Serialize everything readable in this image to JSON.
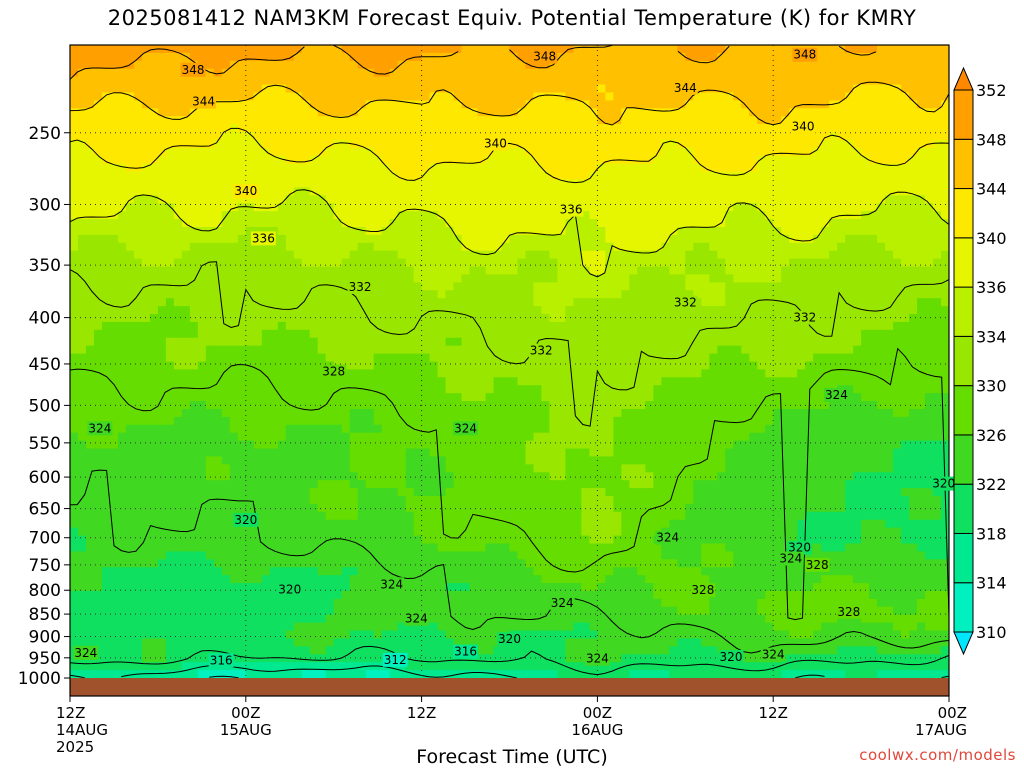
{
  "chart_data": {
    "type": "heatmap",
    "title": "2025081412 NAM3KM Forecast Equiv. Potential Temperature (K) for KMRY",
    "xlabel": "Forecast Time (UTC)",
    "ylabel": "",
    "y_scale": "log",
    "y_reversed": true,
    "ylim": [
      1000,
      200
    ],
    "y_ticks": [
      250,
      300,
      350,
      400,
      450,
      500,
      550,
      600,
      650,
      700,
      750,
      800,
      850,
      900,
      950,
      1000
    ],
    "x_ticks": [
      {
        "line1": "12Z",
        "line2": "14AUG",
        "line3": "2025"
      },
      {
        "line1": "00Z",
        "line2": "15AUG",
        "line3": ""
      },
      {
        "line1": "12Z",
        "line2": "",
        "line3": ""
      },
      {
        "line1": "00Z",
        "line2": "16AUG",
        "line3": ""
      },
      {
        "line1": "12Z",
        "line2": "",
        "line3": ""
      },
      {
        "line1": "00Z",
        "line2": "17AUG",
        "line3": ""
      }
    ],
    "colorbar": {
      "levels": [
        310,
        314,
        318,
        322,
        326,
        330,
        334,
        336,
        340,
        344,
        348,
        352
      ],
      "colors": [
        "#00e6ff",
        "#00f0c0",
        "#00e890",
        "#10e060",
        "#40d820",
        "#66dd00",
        "#99e600",
        "#b8f000",
        "#e6f500",
        "#ffe800",
        "#ffc000",
        "#ffa000",
        "#ff8800"
      ],
      "extend": "both"
    },
    "profile_levels_hPa": [
      1000,
      950,
      900,
      850,
      800,
      750,
      700,
      650,
      600,
      550,
      500,
      450,
      400,
      350,
      300,
      250,
      200
    ],
    "profile_times": [
      "12Z 14AUG",
      "00Z 15AUG",
      "12Z",
      "00Z 16AUG",
      "12Z",
      "00Z 17AUG"
    ],
    "profiles_K": [
      [
        316,
        322,
        320,
        320,
        321,
        322,
        323,
        324,
        324,
        325,
        327,
        329,
        330,
        333,
        337,
        342,
        350
      ],
      [
        312,
        320,
        322,
        320,
        320,
        322,
        324,
        324,
        325,
        325,
        327,
        329,
        331,
        333,
        336,
        341,
        349
      ],
      [
        314,
        320,
        322,
        324,
        322,
        324,
        326,
        327,
        326,
        326,
        328,
        330,
        332,
        334,
        337,
        342,
        349
      ],
      [
        318,
        322,
        322,
        324,
        326,
        328,
        330,
        330,
        331,
        331,
        331,
        332,
        333,
        335,
        338,
        342,
        348
      ],
      [
        317,
        322,
        325,
        327,
        326,
        324,
        322,
        323,
        324,
        325,
        327,
        330,
        332,
        334,
        337,
        342,
        348
      ],
      [
        316,
        320,
        325,
        327,
        326,
        324,
        321,
        321,
        321,
        322,
        325,
        328,
        330,
        333,
        336,
        341,
        347
      ]
    ],
    "contour_labels": [
      {
        "text": "348",
        "time": 0.7,
        "p": 213
      },
      {
        "text": "348",
        "time": 2.7,
        "p": 206
      },
      {
        "text": "348",
        "time": 4.18,
        "p": 205
      },
      {
        "text": "344",
        "time": 0.76,
        "p": 231
      },
      {
        "text": "344",
        "time": 3.5,
        "p": 223
      },
      {
        "text": "340",
        "time": 2.42,
        "p": 257
      },
      {
        "text": "340",
        "time": 4.17,
        "p": 246
      },
      {
        "text": "340",
        "time": 1.0,
        "p": 290
      },
      {
        "text": "336",
        "time": 2.85,
        "p": 304
      },
      {
        "text": "336",
        "time": 1.1,
        "p": 327
      },
      {
        "text": "332",
        "time": 1.65,
        "p": 370
      },
      {
        "text": "332",
        "time": 3.5,
        "p": 385
      },
      {
        "text": "332",
        "time": 4.18,
        "p": 400
      },
      {
        "text": "332",
        "time": 2.68,
        "p": 435
      },
      {
        "text": "328",
        "time": 1.5,
        "p": 459
      },
      {
        "text": "324",
        "time": 0.17,
        "p": 530
      },
      {
        "text": "324",
        "time": 2.25,
        "p": 530
      },
      {
        "text": "324",
        "time": 4.36,
        "p": 487
      },
      {
        "text": "320",
        "time": 4.97,
        "p": 610
      },
      {
        "text": "320",
        "time": 1.0,
        "p": 669
      },
      {
        "text": "324",
        "time": 3.4,
        "p": 700
      },
      {
        "text": "320",
        "time": 4.15,
        "p": 718
      },
      {
        "text": "324",
        "time": 4.1,
        "p": 738
      },
      {
        "text": "328",
        "time": 4.25,
        "p": 750
      },
      {
        "text": "320",
        "time": 1.25,
        "p": 798
      },
      {
        "text": "324",
        "time": 1.83,
        "p": 788
      },
      {
        "text": "328",
        "time": 3.6,
        "p": 800
      },
      {
        "text": "324",
        "time": 2.8,
        "p": 826
      },
      {
        "text": "324",
        "time": 1.97,
        "p": 860
      },
      {
        "text": "328",
        "time": 4.43,
        "p": 845
      },
      {
        "text": "320",
        "time": 2.5,
        "p": 906
      },
      {
        "text": "316",
        "time": 2.25,
        "p": 935
      },
      {
        "text": "324",
        "time": 0.09,
        "p": 938
      },
      {
        "text": "316",
        "time": 0.86,
        "p": 956
      },
      {
        "text": "312",
        "time": 1.85,
        "p": 955
      },
      {
        "text": "324",
        "time": 3.0,
        "p": 952
      },
      {
        "text": "320",
        "time": 3.76,
        "p": 948
      },
      {
        "text": "324",
        "time": 4.0,
        "p": 942
      }
    ]
  },
  "footer": {
    "credit": "coolwx.com/models"
  }
}
